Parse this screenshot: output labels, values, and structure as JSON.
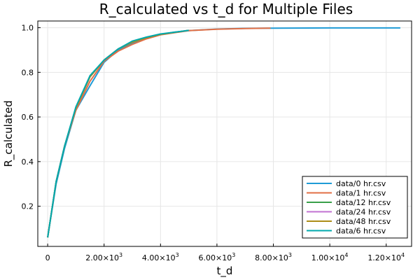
{
  "chart_data": {
    "type": "line",
    "title": "R_calculated vs t_d for Multiple Files",
    "xlabel": "t_d",
    "ylabel": "R_calculated",
    "xlim": [
      -350,
      12900
    ],
    "ylim": [
      0.02,
      1.03
    ],
    "grid": true,
    "legend_position": "bottom-right",
    "x_ticks": [
      {
        "value": 0,
        "mantissa": "0",
        "exp": ""
      },
      {
        "value": 2000,
        "mantissa": "2.00×10",
        "exp": "3"
      },
      {
        "value": 4000,
        "mantissa": "4.00×10",
        "exp": "3"
      },
      {
        "value": 6000,
        "mantissa": "6.00×10",
        "exp": "3"
      },
      {
        "value": 8000,
        "mantissa": "8.00×10",
        "exp": "3"
      },
      {
        "value": 10000,
        "mantissa": "1.00×10",
        "exp": "4"
      },
      {
        "value": 12000,
        "mantissa": "1.20×10",
        "exp": "4"
      }
    ],
    "y_ticks": [
      {
        "value": 0.2,
        "label": "0.2"
      },
      {
        "value": 0.4,
        "label": "0.4"
      },
      {
        "value": 0.6,
        "label": "0.6"
      },
      {
        "value": 0.8,
        "label": "0.8"
      },
      {
        "value": 1.0,
        "label": "1.0"
      }
    ],
    "series": [
      {
        "name": "data/0 hr.csv",
        "color": "#1f9bd6",
        "x": [
          0,
          300,
          600,
          1000,
          1500,
          2000,
          2500,
          3000,
          3500,
          4000,
          4500,
          5000,
          6000,
          7000,
          8000,
          10000,
          12500
        ],
        "y": [
          0.06,
          0.3,
          0.46,
          0.63,
          0.74,
          0.845,
          0.9,
          0.93,
          0.955,
          0.97,
          0.98,
          0.987,
          0.994,
          0.997,
          0.998,
          0.999,
          0.999
        ]
      },
      {
        "name": "data/1 hr.csv",
        "color": "#e26f46",
        "x": [
          0,
          300,
          600,
          1000,
          1500,
          2000,
          2500,
          3000,
          3500,
          4000,
          5000,
          6000,
          7000,
          7900
        ],
        "y": [
          0.06,
          0.31,
          0.47,
          0.63,
          0.76,
          0.85,
          0.895,
          0.925,
          0.95,
          0.968,
          0.987,
          0.993,
          0.996,
          0.998
        ]
      },
      {
        "name": "data/12 hr.csv",
        "color": "#3aa04a",
        "x": [
          0,
          300,
          600,
          1000,
          1500,
          2000,
          2500,
          3000,
          3500,
          4000,
          5000
        ],
        "y": [
          0.06,
          0.31,
          0.47,
          0.64,
          0.78,
          0.855,
          0.905,
          0.935,
          0.955,
          0.97,
          0.988
        ]
      },
      {
        "name": "data/24 hr.csv",
        "color": "#c271d2",
        "x": [
          0,
          300,
          600,
          1000,
          1500,
          2000,
          2500,
          3000,
          3500,
          4000,
          5000
        ],
        "y": [
          0.06,
          0.31,
          0.47,
          0.64,
          0.78,
          0.855,
          0.905,
          0.935,
          0.955,
          0.97,
          0.988
        ]
      },
      {
        "name": "data/48 hr.csv",
        "color": "#ac8d18",
        "x": [
          0,
          300,
          600,
          1000,
          1500,
          2000,
          2500,
          3000,
          3500,
          4000,
          5000
        ],
        "y": [
          0.06,
          0.31,
          0.47,
          0.64,
          0.78,
          0.855,
          0.905,
          0.935,
          0.955,
          0.97,
          0.988
        ]
      },
      {
        "name": "data/6 hr.csv",
        "color": "#00a9ad",
        "x": [
          0,
          300,
          600,
          1000,
          1500,
          2000,
          2500,
          3000,
          3500,
          4000,
          5000
        ],
        "y": [
          0.06,
          0.31,
          0.47,
          0.645,
          0.785,
          0.855,
          0.905,
          0.94,
          0.958,
          0.972,
          0.988
        ]
      }
    ]
  }
}
